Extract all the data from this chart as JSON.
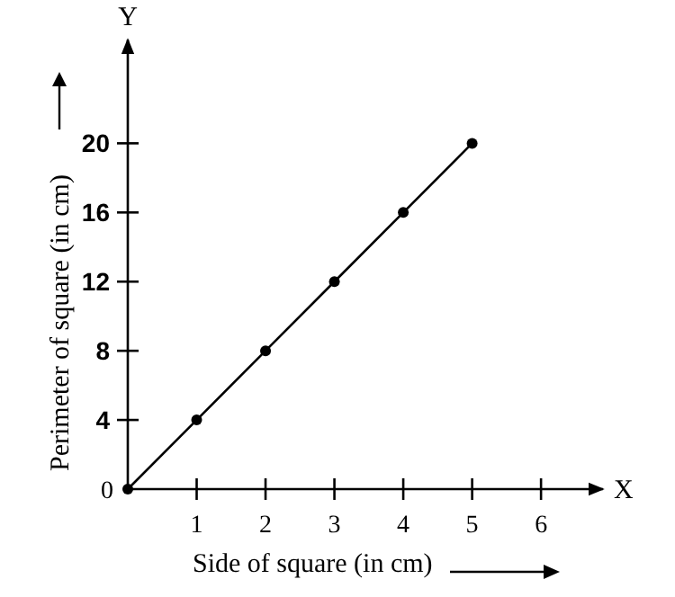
{
  "chart_data": {
    "type": "line",
    "xlabel": "Side of square (in cm)",
    "ylabel": "Perimeter of square (in cm)",
    "annotations": [
      "X",
      "Y"
    ],
    "series": [
      {
        "color": "#000000",
        "x": [
          0,
          1,
          2,
          3,
          4,
          5
        ],
        "values": [
          0,
          4,
          8,
          12,
          16,
          20
        ]
      }
    ],
    "xlim": [
      0,
      6.9
    ],
    "ylim": [
      0,
      26
    ],
    "xticks": [
      1,
      2,
      3,
      4,
      5,
      6
    ],
    "yticks": [
      0,
      4,
      8,
      12,
      16,
      20
    ],
    "marker": "circle",
    "line_style": "solid",
    "grid": false
  }
}
